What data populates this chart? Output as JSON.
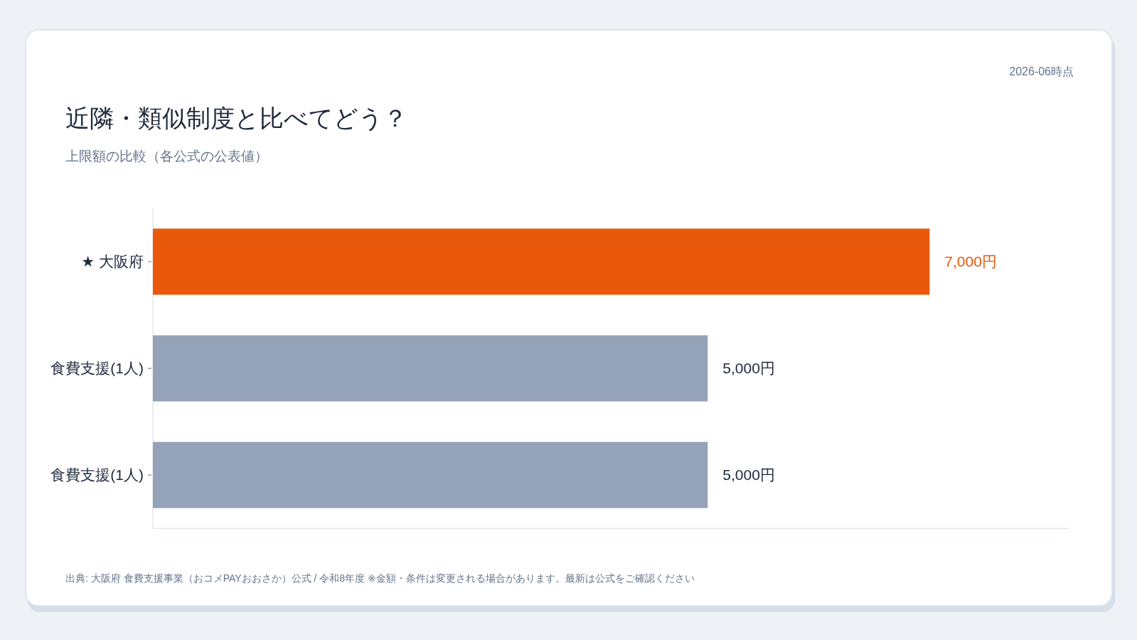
{
  "chart_data": {
    "type": "bar",
    "orientation": "horizontal",
    "title": "近隣・類似制度と比べてどう？",
    "subtitle": "上限額の比較（各公式の公表値）",
    "categories": [
      "★ 大阪府",
      "食費支援(1人)",
      "食費支援(1人)"
    ],
    "values": [
      7000,
      5000,
      5000
    ],
    "colors": [
      "#ea580c",
      "#94a3b8",
      "#94a3b8"
    ],
    "value_labels": [
      "7,000円",
      "5,000円",
      "5,000円"
    ],
    "annotations": [
      "2026-06時点",
      "出典: 大阪府 食費支援事業（おコメPAYおおさか）公式 / 令和8年度 ※金額・条件は変更される場合があります。最新は公式をご確認ください"
    ]
  }
}
